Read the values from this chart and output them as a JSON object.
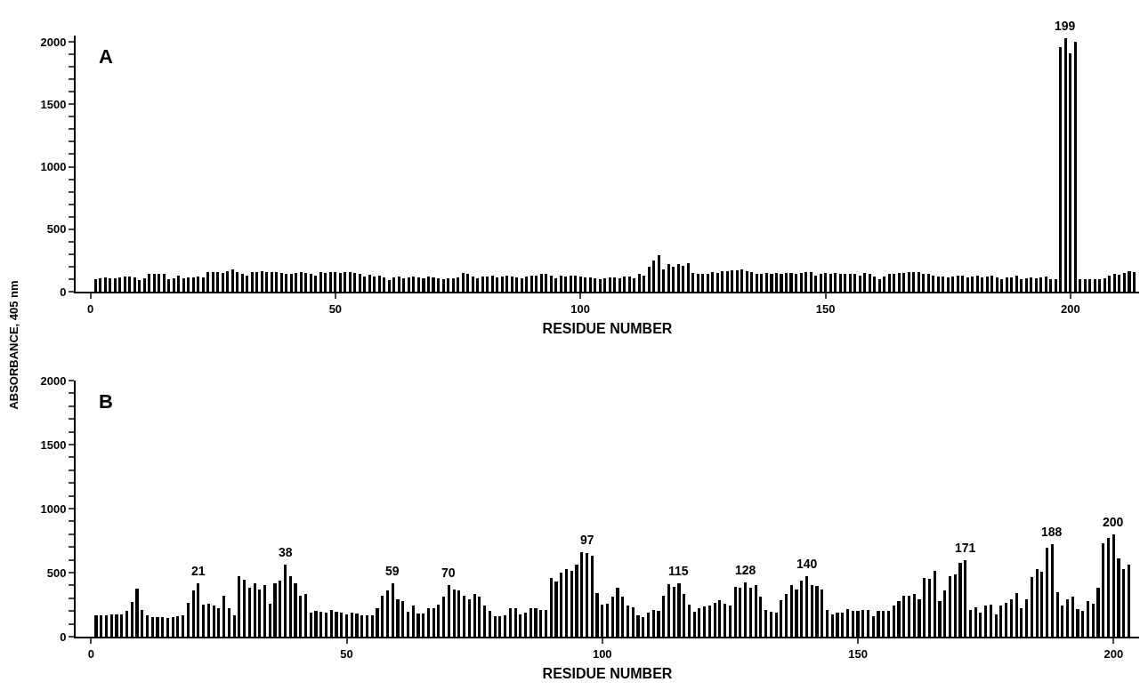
{
  "chart_data": [
    {
      "type": "bar",
      "xlabel": "RESIDUE NUMBER",
      "ylabel": "ABSORBANCE, 405 nm",
      "color": "#000000",
      "grid": false,
      "x": [
        1,
        2,
        3,
        4,
        5,
        6,
        7,
        8,
        9,
        10,
        11,
        12,
        13,
        14,
        15,
        16,
        17,
        18,
        19,
        20,
        21,
        22,
        23,
        24,
        25,
        26,
        27,
        28,
        29,
        30,
        31,
        32,
        33,
        34,
        35,
        36,
        37,
        38,
        39,
        40,
        41,
        42,
        43,
        44,
        45,
        46,
        47,
        48,
        49,
        50,
        51,
        52,
        53,
        54,
        55,
        56,
        57,
        58,
        59,
        60,
        61,
        62,
        63,
        64,
        65,
        66,
        67,
        68,
        69,
        70,
        71,
        72,
        73,
        74,
        75,
        76,
        77,
        78,
        79,
        80,
        81,
        82,
        83,
        84,
        85,
        86,
        87,
        88,
        89,
        90,
        91,
        92,
        93,
        94,
        95,
        96,
        97,
        98,
        99,
        100,
        101,
        102,
        103,
        104,
        105,
        106,
        107,
        108,
        109,
        110,
        111,
        112,
        113,
        114,
        115,
        116,
        117,
        118,
        119,
        120,
        121,
        122,
        123,
        124,
        125,
        126,
        127,
        128,
        129,
        130,
        131,
        132,
        133,
        134,
        135,
        136,
        137,
        138,
        139,
        140,
        141,
        142,
        143,
        144,
        145,
        146,
        147,
        148,
        149,
        150,
        151,
        152,
        153,
        154,
        155,
        156,
        157,
        158,
        159,
        160,
        161,
        162,
        163,
        164,
        165,
        166,
        167,
        168,
        169,
        170,
        171,
        172,
        173,
        174,
        175,
        176,
        177,
        178,
        179,
        180,
        181,
        182,
        183,
        184,
        185,
        186,
        187,
        188,
        189,
        190,
        191,
        192,
        193,
        194,
        195,
        196,
        197,
        198,
        199,
        200,
        201,
        202,
        203,
        204,
        205,
        206,
        207,
        208,
        209,
        210,
        211,
        212,
        213
      ],
      "values": [
        100,
        110,
        115,
        110,
        105,
        115,
        120,
        120,
        115,
        95,
        110,
        140,
        140,
        140,
        145,
        100,
        110,
        125,
        110,
        115,
        115,
        120,
        115,
        160,
        155,
        160,
        150,
        165,
        175,
        160,
        140,
        130,
        155,
        160,
        165,
        155,
        160,
        160,
        150,
        145,
        145,
        150,
        155,
        150,
        140,
        130,
        155,
        150,
        155,
        160,
        150,
        155,
        160,
        150,
        140,
        120,
        135,
        120,
        130,
        115,
        95,
        115,
        120,
        110,
        115,
        120,
        115,
        110,
        120,
        115,
        105,
        100,
        110,
        110,
        115,
        150,
        145,
        120,
        105,
        120,
        120,
        125,
        115,
        120,
        130,
        120,
        115,
        110,
        120,
        130,
        130,
        140,
        140,
        130,
        110,
        125,
        120,
        130,
        125,
        120,
        115,
        115,
        110,
        100,
        110,
        115,
        115,
        105,
        120,
        120,
        110,
        140,
        130,
        200,
        250,
        290,
        180,
        220,
        200,
        220,
        210,
        230,
        150,
        140,
        145,
        140,
        160,
        150,
        165,
        165,
        170,
        170,
        180,
        165,
        160,
        140,
        145,
        150,
        145,
        150,
        140,
        150,
        150,
        140,
        150,
        155,
        160,
        130,
        140,
        150,
        140,
        150,
        145,
        140,
        140,
        140,
        130,
        150,
        140,
        120,
        100,
        120,
        140,
        145,
        150,
        150,
        155,
        160,
        155,
        140,
        145,
        125,
        120,
        120,
        115,
        120,
        125,
        125,
        115,
        120,
        130,
        115,
        120,
        125,
        115,
        100,
        115,
        115,
        125,
        100,
        110,
        115,
        110,
        115,
        120,
        100,
        100,
        1960,
        2030,
        1910,
        2000,
        100,
        100,
        100,
        100,
        100,
        110,
        130,
        140,
        135,
        150,
        165,
        160
      ],
      "xlim": [
        -3,
        214
      ],
      "xticks": [
        0,
        50,
        100,
        150,
        200
      ],
      "ylim": [
        0,
        2050
      ],
      "yticks": [
        0,
        {
          "value": 100,
          "label": null
        },
        {
          "value": 200,
          "label": null
        },
        {
          "value": 300,
          "label": null
        },
        {
          "value": 400,
          "label": null
        },
        500,
        {
          "value": 600,
          "label": null
        },
        {
          "value": 700,
          "label": null
        },
        {
          "value": 800,
          "label": null
        },
        {
          "value": 900,
          "label": null
        },
        1000,
        {
          "value": 1100,
          "label": null
        },
        {
          "value": 1200,
          "label": null
        },
        {
          "value": 1300,
          "label": null
        },
        {
          "value": 1400,
          "label": null
        },
        1500,
        {
          "value": 1600,
          "label": null
        },
        {
          "value": 1700,
          "label": null
        },
        {
          "value": 1800,
          "label": null
        },
        {
          "value": 1900,
          "label": null
        },
        2000
      ],
      "annotations": [
        "A",
        {
          "text": "199",
          "x": 199,
          "y": 2030
        }
      ]
    },
    {
      "type": "bar",
      "xlabel": "RESIDUE NUMBER",
      "color": "#000000",
      "grid": false,
      "x": [
        1,
        2,
        3,
        4,
        5,
        6,
        7,
        8,
        9,
        10,
        11,
        12,
        13,
        14,
        15,
        16,
        17,
        18,
        19,
        20,
        21,
        22,
        23,
        24,
        25,
        26,
        27,
        28,
        29,
        30,
        31,
        32,
        33,
        34,
        35,
        36,
        37,
        38,
        39,
        40,
        41,
        42,
        43,
        44,
        45,
        46,
        47,
        48,
        49,
        50,
        51,
        52,
        53,
        54,
        55,
        56,
        57,
        58,
        59,
        60,
        61,
        62,
        63,
        64,
        65,
        66,
        67,
        68,
        69,
        70,
        71,
        72,
        73,
        74,
        75,
        76,
        77,
        78,
        79,
        80,
        81,
        82,
        83,
        84,
        85,
        86,
        87,
        88,
        89,
        90,
        91,
        92,
        93,
        94,
        95,
        96,
        97,
        98,
        99,
        100,
        101,
        102,
        103,
        104,
        105,
        106,
        107,
        108,
        109,
        110,
        111,
        112,
        113,
        114,
        115,
        116,
        117,
        118,
        119,
        120,
        121,
        122,
        123,
        124,
        125,
        126,
        127,
        128,
        129,
        130,
        131,
        132,
        133,
        134,
        135,
        136,
        137,
        138,
        139,
        140,
        141,
        142,
        143,
        144,
        145,
        146,
        147,
        148,
        149,
        150,
        151,
        152,
        153,
        154,
        155,
        156,
        157,
        158,
        159,
        160,
        161,
        162,
        163,
        164,
        165,
        166,
        167,
        168,
        169,
        170,
        171,
        172,
        173,
        174,
        175,
        176,
        177,
        178,
        179,
        180,
        181,
        182,
        183,
        184,
        185,
        186,
        187,
        188,
        189,
        190,
        191,
        192,
        193,
        194,
        195,
        196,
        197,
        198,
        199,
        200,
        201,
        202,
        203
      ],
      "values": [
        165,
        165,
        170,
        175,
        175,
        175,
        200,
        270,
        375,
        205,
        170,
        155,
        155,
        150,
        145,
        155,
        160,
        165,
        265,
        360,
        420,
        250,
        260,
        240,
        225,
        320,
        225,
        170,
        470,
        445,
        385,
        420,
        370,
        400,
        260,
        420,
        440,
        560,
        470,
        420,
        320,
        330,
        190,
        200,
        195,
        190,
        210,
        195,
        185,
        175,
        185,
        180,
        170,
        165,
        165,
        225,
        322,
        360,
        420,
        295,
        275,
        195,
        245,
        180,
        180,
        225,
        225,
        250,
        315,
        400,
        370,
        360,
        320,
        290,
        330,
        310,
        240,
        200,
        160,
        160,
        165,
        220,
        225,
        175,
        190,
        220,
        220,
        210,
        205,
        460,
        430,
        500,
        530,
        515,
        560,
        660,
        655,
        635,
        340,
        250,
        260,
        310,
        380,
        310,
        240,
        230,
        170,
        150,
        185,
        205,
        200,
        320,
        410,
        390,
        420,
        335,
        250,
        195,
        225,
        235,
        245,
        265,
        285,
        260,
        245,
        390,
        385,
        425,
        385,
        405,
        310,
        205,
        195,
        190,
        285,
        335,
        400,
        365,
        440,
        475,
        400,
        395,
        365,
        205,
        175,
        185,
        190,
        215,
        200,
        200,
        210,
        205,
        160,
        200,
        200,
        200,
        240,
        275,
        320,
        320,
        335,
        295,
        455,
        450,
        515,
        275,
        360,
        475,
        485,
        575,
        595,
        205,
        230,
        190,
        240,
        250,
        175,
        240,
        265,
        290,
        340,
        220,
        295,
        465,
        530,
        510,
        695,
        720,
        350,
        240,
        290,
        310,
        215,
        200,
        275,
        260,
        385,
        730,
        770,
        800,
        610,
        530,
        560
      ],
      "xlim": [
        -3,
        205
      ],
      "xticks": [
        0,
        50,
        100,
        150,
        200
      ],
      "ylim": [
        0,
        2000
      ],
      "yticks": [
        0,
        {
          "value": 100,
          "label": null
        },
        {
          "value": 200,
          "label": null
        },
        {
          "value": 300,
          "label": null
        },
        {
          "value": 400,
          "label": null
        },
        500,
        {
          "value": 600,
          "label": null
        },
        {
          "value": 700,
          "label": null
        },
        {
          "value": 800,
          "label": null
        },
        {
          "value": 900,
          "label": null
        },
        1000,
        {
          "value": 1100,
          "label": null
        },
        {
          "value": 1200,
          "label": null
        },
        {
          "value": 1300,
          "label": null
        },
        {
          "value": 1400,
          "label": null
        },
        1500,
        {
          "value": 1600,
          "label": null
        },
        {
          "value": 1700,
          "label": null
        },
        {
          "value": 1800,
          "label": null
        },
        {
          "value": 1900,
          "label": null
        },
        2000
      ],
      "annotations": [
        "B",
        {
          "text": "21",
          "x": 21,
          "y": 420
        },
        {
          "text": "38",
          "x": 38,
          "y": 560
        },
        {
          "text": "59",
          "x": 59,
          "y": 420
        },
        {
          "text": "70",
          "x": 70,
          "y": 400
        },
        {
          "text": "97",
          "x": 97,
          "y": 660
        },
        {
          "text": "115",
          "x": 115,
          "y": 420
        },
        {
          "text": "128",
          "x": 128,
          "y": 425
        },
        {
          "text": "140",
          "x": 140,
          "y": 475
        },
        {
          "text": "171",
          "x": 171,
          "y": 595
        },
        {
          "text": "188",
          "x": 188,
          "y": 720
        },
        {
          "text": "200",
          "x": 200,
          "y": 800
        }
      ]
    }
  ]
}
